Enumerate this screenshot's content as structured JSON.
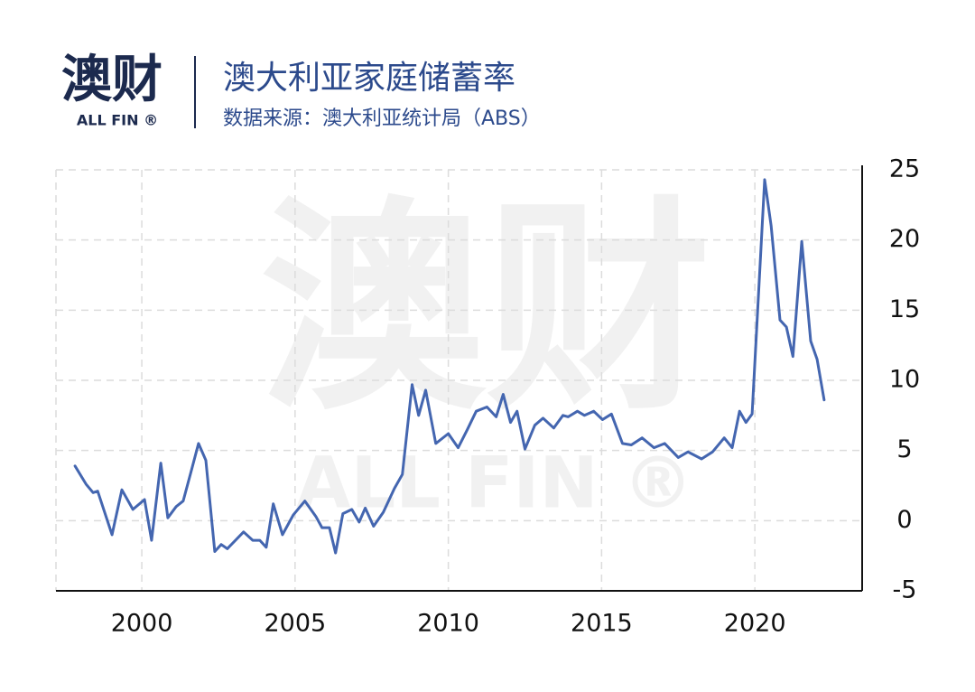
{
  "logo": {
    "text": "澳财",
    "sub": "ALL FIN ®"
  },
  "chart_data": {
    "type": "line",
    "title": "澳大利亚家庭储蓄率",
    "subtitle": "数据来源：澳大利亚统计局（ABS）",
    "color": "#4466b0",
    "grid": true,
    "xlim": [
      1997.2,
      2023.5
    ],
    "xticks": [
      2000,
      2005,
      2010,
      2015,
      2020
    ],
    "ylim": [
      -5,
      25
    ],
    "yticks": [
      25,
      20,
      15,
      10,
      5,
      0,
      -5
    ],
    "x": [
      1997.82,
      1998.18,
      1998.41,
      1998.56,
      1999.03,
      1999.35,
      1999.71,
      2000.09,
      2000.32,
      2000.62,
      2000.85,
      2001.12,
      2001.35,
      2001.62,
      2001.85,
      2002.09,
      2002.38,
      2002.59,
      2002.79,
      2003.32,
      2003.62,
      2003.85,
      2004.06,
      2004.29,
      2004.59,
      2004.94,
      2005.32,
      2005.68,
      2005.88,
      2006.12,
      2006.32,
      2006.56,
      2006.85,
      2007.09,
      2007.29,
      2007.56,
      2007.88,
      2008.24,
      2008.5,
      2008.82,
      2009.03,
      2009.26,
      2009.59,
      2010.0,
      2010.32,
      2010.62,
      2010.91,
      2011.26,
      2011.56,
      2011.79,
      2012.03,
      2012.24,
      2012.5,
      2012.82,
      2013.09,
      2013.44,
      2013.74,
      2013.91,
      2014.21,
      2014.44,
      2014.74,
      2015.03,
      2015.32,
      2015.68,
      2015.97,
      2016.32,
      2016.71,
      2017.06,
      2017.5,
      2017.82,
      2018.26,
      2018.62,
      2019.0,
      2019.26,
      2019.5,
      2019.71,
      2019.91,
      2020.32,
      2020.53,
      2020.82,
      2021.03,
      2021.24,
      2021.53,
      2021.82,
      2022.03,
      2022.26
    ],
    "values": [
      3.9,
      2.6,
      2.0,
      2.1,
      -1.0,
      2.2,
      0.8,
      1.5,
      -1.4,
      4.1,
      0.2,
      1.0,
      1.4,
      3.6,
      5.5,
      4.3,
      -2.2,
      -1.7,
      -2.0,
      -0.8,
      -1.4,
      -1.4,
      -1.9,
      1.2,
      -1.0,
      0.4,
      1.4,
      0.3,
      -0.5,
      -0.5,
      -2.3,
      0.5,
      0.8,
      -0.1,
      0.9,
      -0.4,
      0.6,
      2.3,
      3.3,
      9.7,
      7.5,
      9.3,
      5.5,
      6.2,
      5.2,
      6.5,
      7.8,
      8.1,
      7.4,
      9.0,
      7.0,
      7.8,
      5.1,
      6.8,
      7.3,
      6.6,
      7.5,
      7.4,
      7.8,
      7.5,
      7.8,
      7.2,
      7.6,
      5.5,
      5.4,
      5.9,
      5.2,
      5.5,
      4.5,
      4.9,
      4.4,
      4.9,
      5.9,
      5.2,
      7.8,
      7.0,
      7.6,
      24.3,
      21.0,
      14.3,
      13.8,
      11.7,
      19.9,
      12.8,
      11.5,
      8.6
    ]
  }
}
